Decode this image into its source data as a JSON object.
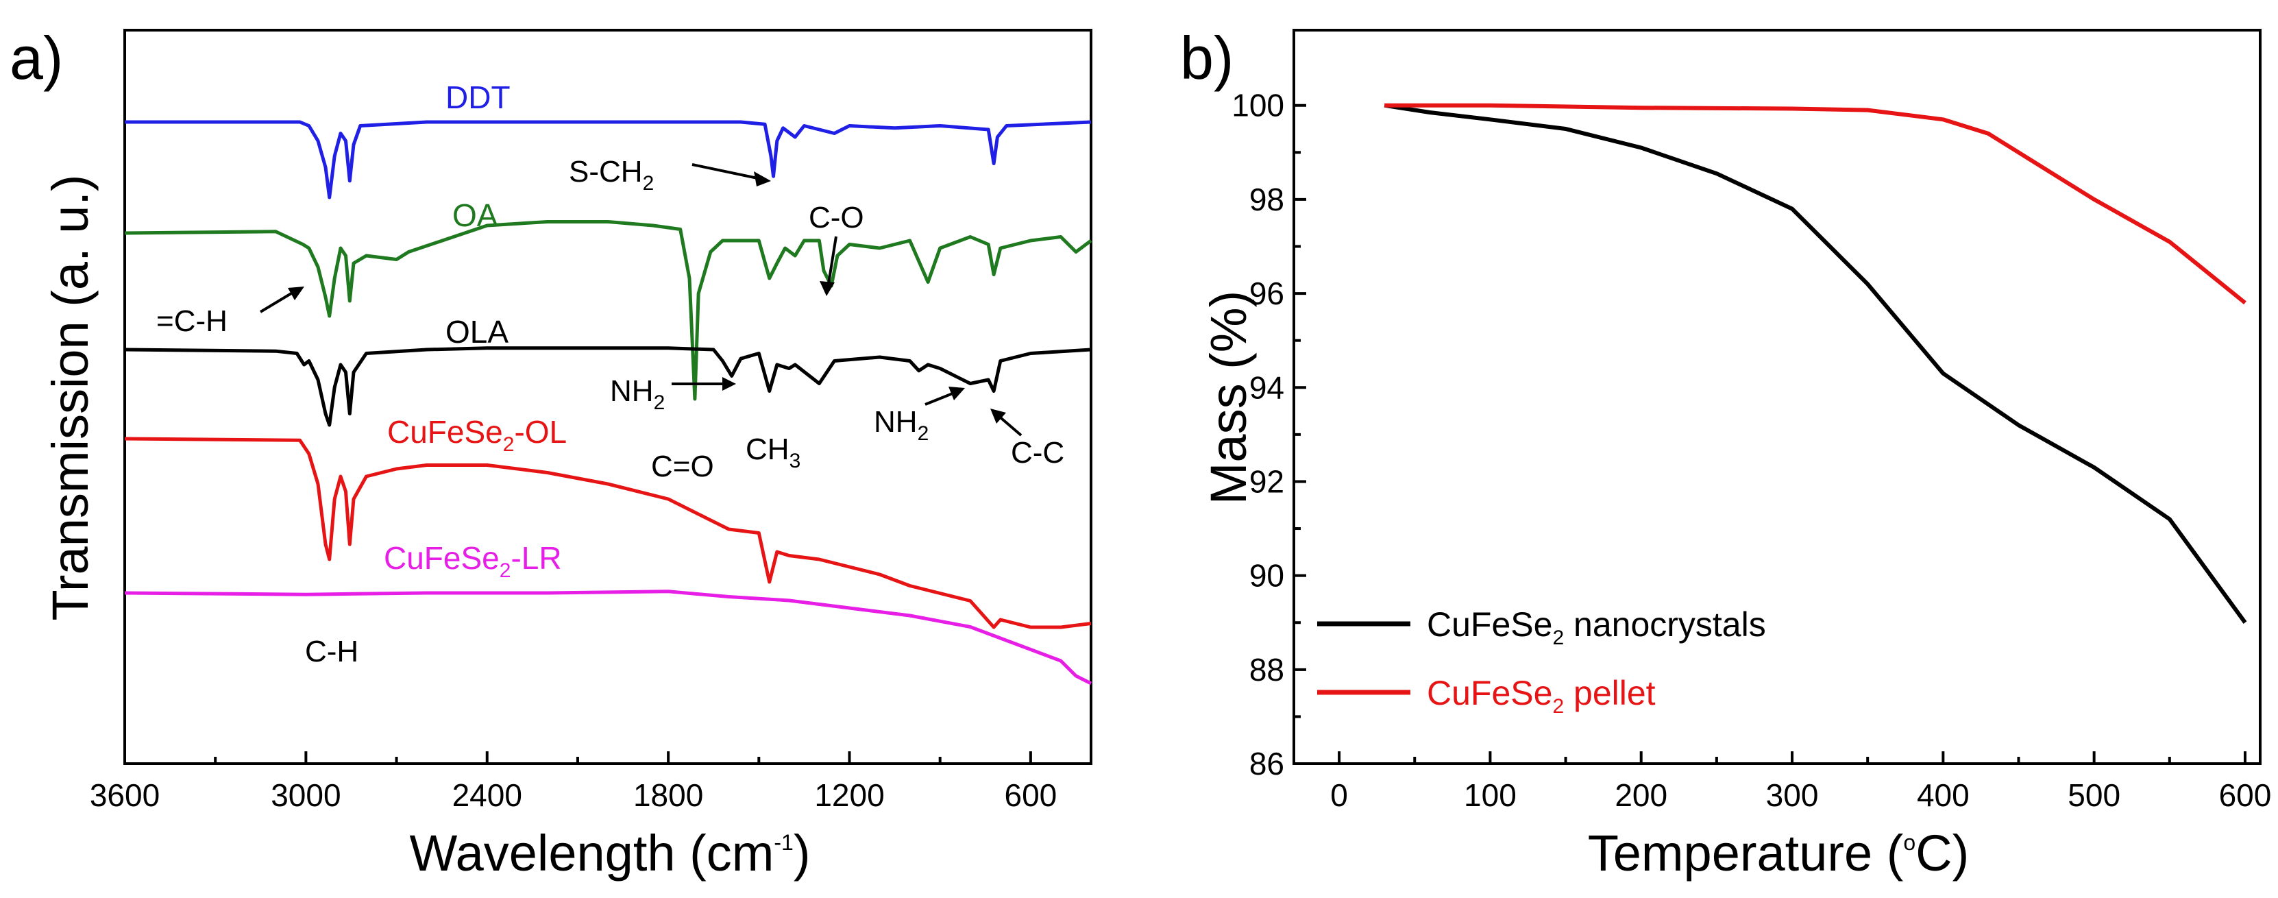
{
  "chart_data": [
    {
      "type": "line",
      "panel_label": "a)",
      "xlabel": "Wavelength (cm",
      "xlabel_sup": "-1",
      "xlabel_end": ")",
      "ylabel": "Transmission (a. u.)",
      "xlim": [
        3600,
        400
      ],
      "x_ticks": [
        3600,
        3000,
        2400,
        1800,
        1200,
        600
      ],
      "series": [
        {
          "name": "DDT",
          "color": "#1f1fe6",
          "offset": 0.0,
          "points": [
            [
              3600,
              0
            ],
            [
              3020,
              0
            ],
            [
              2990,
              -0.05
            ],
            [
              2960,
              -0.25
            ],
            [
              2935,
              -0.6
            ],
            [
              2922,
              -1.0
            ],
            [
              2905,
              -0.45
            ],
            [
              2885,
              -0.15
            ],
            [
              2868,
              -0.25
            ],
            [
              2855,
              -0.78
            ],
            [
              2842,
              -0.3
            ],
            [
              2820,
              -0.05
            ],
            [
              2600,
              0
            ],
            [
              1560,
              0
            ],
            [
              1480,
              -0.03
            ],
            [
              1460,
              -0.45
            ],
            [
              1452,
              -0.72
            ],
            [
              1440,
              -0.25
            ],
            [
              1420,
              -0.08
            ],
            [
              1380,
              -0.2
            ],
            [
              1350,
              -0.05
            ],
            [
              1300,
              -0.1
            ],
            [
              1250,
              -0.15
            ],
            [
              1200,
              -0.05
            ],
            [
              1050,
              -0.08
            ],
            [
              900,
              -0.05
            ],
            [
              740,
              -0.1
            ],
            [
              722,
              -0.55
            ],
            [
              710,
              -0.2
            ],
            [
              680,
              -0.05
            ],
            [
              400,
              0
            ]
          ]
        },
        {
          "name": "OA",
          "color": "#1f7a1f",
          "offset": 1.3,
          "points": [
            [
              3600,
              0
            ],
            [
              3100,
              0.02
            ],
            [
              3010,
              -0.15
            ],
            [
              2990,
              -0.2
            ],
            [
              2960,
              -0.45
            ],
            [
              2935,
              -0.85
            ],
            [
              2922,
              -1.1
            ],
            [
              2905,
              -0.6
            ],
            [
              2885,
              -0.2
            ],
            [
              2868,
              -0.3
            ],
            [
              2855,
              -0.9
            ],
            [
              2842,
              -0.4
            ],
            [
              2800,
              -0.3
            ],
            [
              2700,
              -0.35
            ],
            [
              2660,
              -0.25
            ],
            [
              2400,
              0.1
            ],
            [
              2200,
              0.15
            ],
            [
              2000,
              0.15
            ],
            [
              1850,
              0.1
            ],
            [
              1760,
              0.05
            ],
            [
              1730,
              -0.6
            ],
            [
              1712,
              -2.2
            ],
            [
              1700,
              -0.8
            ],
            [
              1660,
              -0.25
            ],
            [
              1620,
              -0.1
            ],
            [
              1500,
              -0.1
            ],
            [
              1465,
              -0.6
            ],
            [
              1440,
              -0.4
            ],
            [
              1413,
              -0.2
            ],
            [
              1380,
              -0.3
            ],
            [
              1350,
              -0.1
            ],
            [
              1300,
              -0.1
            ],
            [
              1285,
              -0.5
            ],
            [
              1260,
              -0.7
            ],
            [
              1240,
              -0.3
            ],
            [
              1200,
              -0.15
            ],
            [
              1100,
              -0.2
            ],
            [
              1000,
              -0.1
            ],
            [
              940,
              -0.65
            ],
            [
              900,
              -0.2
            ],
            [
              800,
              -0.05
            ],
            [
              740,
              -0.15
            ],
            [
              722,
              -0.55
            ],
            [
              700,
              -0.2
            ],
            [
              600,
              -0.1
            ],
            [
              500,
              -0.05
            ],
            [
              450,
              -0.25
            ],
            [
              400,
              -0.1
            ]
          ]
        },
        {
          "name": "OLA",
          "color": "#000000",
          "offset": 2.6,
          "points": [
            [
              3600,
              0
            ],
            [
              3100,
              -0.02
            ],
            [
              3030,
              -0.05
            ],
            [
              3006,
              -0.2
            ],
            [
              2990,
              -0.15
            ],
            [
              2960,
              -0.4
            ],
            [
              2935,
              -0.85
            ],
            [
              2922,
              -1.0
            ],
            [
              2905,
              -0.5
            ],
            [
              2885,
              -0.2
            ],
            [
              2868,
              -0.3
            ],
            [
              2855,
              -0.85
            ],
            [
              2842,
              -0.3
            ],
            [
              2800,
              -0.05
            ],
            [
              2600,
              0
            ],
            [
              2400,
              0.02
            ],
            [
              1800,
              0.02
            ],
            [
              1650,
              0
            ],
            [
              1620,
              -0.15
            ],
            [
              1590,
              -0.35
            ],
            [
              1560,
              -0.12
            ],
            [
              1500,
              -0.05
            ],
            [
              1465,
              -0.55
            ],
            [
              1440,
              -0.2
            ],
            [
              1400,
              -0.25
            ],
            [
              1380,
              -0.2
            ],
            [
              1300,
              -0.45
            ],
            [
              1250,
              -0.15
            ],
            [
              1100,
              -0.1
            ],
            [
              1000,
              -0.15
            ],
            [
              970,
              -0.28
            ],
            [
              940,
              -0.2
            ],
            [
              900,
              -0.25
            ],
            [
              800,
              -0.45
            ],
            [
              740,
              -0.4
            ],
            [
              722,
              -0.55
            ],
            [
              700,
              -0.15
            ],
            [
              600,
              -0.05
            ],
            [
              400,
              0
            ]
          ]
        },
        {
          "name": "CuFeSe2-OL",
          "color": "#e61414",
          "offset": 3.9,
          "points": [
            [
              3600,
              0
            ],
            [
              3020,
              -0.02
            ],
            [
              2990,
              -0.2
            ],
            [
              2960,
              -0.6
            ],
            [
              2935,
              -1.4
            ],
            [
              2922,
              -1.6
            ],
            [
              2905,
              -0.8
            ],
            [
              2885,
              -0.5
            ],
            [
              2868,
              -0.7
            ],
            [
              2855,
              -1.4
            ],
            [
              2842,
              -0.8
            ],
            [
              2800,
              -0.5
            ],
            [
              2700,
              -0.4
            ],
            [
              2600,
              -0.35
            ],
            [
              2400,
              -0.35
            ],
            [
              2200,
              -0.45
            ],
            [
              2000,
              -0.6
            ],
            [
              1800,
              -0.8
            ],
            [
              1600,
              -1.2
            ],
            [
              1500,
              -1.25
            ],
            [
              1465,
              -1.9
            ],
            [
              1440,
              -1.5
            ],
            [
              1400,
              -1.55
            ],
            [
              1300,
              -1.6
            ],
            [
              1200,
              -1.7
            ],
            [
              1100,
              -1.8
            ],
            [
              1000,
              -1.95
            ],
            [
              900,
              -2.05
            ],
            [
              800,
              -2.15
            ],
            [
              722,
              -2.5
            ],
            [
              700,
              -2.4
            ],
            [
              600,
              -2.5
            ],
            [
              500,
              -2.5
            ],
            [
              400,
              -2.45
            ]
          ]
        },
        {
          "name": "CuFeSe2-LR",
          "color": "#e61ee6",
          "offset": 5.2,
          "points": [
            [
              3600,
              0
            ],
            [
              3000,
              -0.02
            ],
            [
              2600,
              0
            ],
            [
              2200,
              0
            ],
            [
              1800,
              0.02
            ],
            [
              1600,
              -0.05
            ],
            [
              1400,
              -0.1
            ],
            [
              1200,
              -0.2
            ],
            [
              1000,
              -0.3
            ],
            [
              800,
              -0.45
            ],
            [
              700,
              -0.6
            ],
            [
              600,
              -0.75
            ],
            [
              500,
              -0.9
            ],
            [
              450,
              -1.1
            ],
            [
              400,
              -1.2
            ]
          ]
        }
      ],
      "annotations": [
        {
          "text": "S-CH",
          "sub": "2"
        },
        {
          "text": "=C-H"
        },
        {
          "text": "C-O"
        },
        {
          "text": "NH",
          "sub": "2"
        },
        {
          "text": "C=O"
        },
        {
          "text": "CH",
          "sub": "3"
        },
        {
          "text": "NH",
          "sub": "2"
        },
        {
          "text": "C-C"
        },
        {
          "text": "C-H"
        }
      ],
      "series_labels": [
        {
          "text": "DDT"
        },
        {
          "text": "OA"
        },
        {
          "text": "OLA"
        },
        {
          "text": "CuFeSe",
          "sub": "2",
          "tail": "-OL"
        },
        {
          "text": "CuFeSe",
          "sub": "2",
          "tail": "-LR"
        }
      ]
    },
    {
      "type": "line",
      "panel_label": "b)",
      "xlabel": "Temperature (",
      "xlabel_sup": "o",
      "xlabel_end": "C)",
      "ylabel": "Mass (%)",
      "xlim": [
        -30,
        610
      ],
      "ylim": [
        86,
        101.6
      ],
      "x_ticks": [
        0,
        100,
        200,
        300,
        400,
        500,
        600
      ],
      "y_ticks": [
        86,
        88,
        90,
        92,
        94,
        96,
        98,
        100
      ],
      "series": [
        {
          "name": "CuFeSe2 nanocrystals",
          "color": "#000000",
          "points": [
            [
              30,
              100
            ],
            [
              60,
              99.85
            ],
            [
              100,
              99.7
            ],
            [
              150,
              99.5
            ],
            [
              200,
              99.1
            ],
            [
              250,
              98.55
            ],
            [
              300,
              97.8
            ],
            [
              350,
              96.2
            ],
            [
              400,
              94.3
            ],
            [
              450,
              93.2
            ],
            [
              500,
              92.3
            ],
            [
              550,
              91.2
            ],
            [
              600,
              89
            ]
          ]
        },
        {
          "name": "CuFeSe2 pellet",
          "color": "#e61414",
          "points": [
            [
              30,
              100
            ],
            [
              100,
              100
            ],
            [
              200,
              99.95
            ],
            [
              300,
              99.93
            ],
            [
              350,
              99.9
            ],
            [
              400,
              99.7
            ],
            [
              430,
              99.4
            ],
            [
              460,
              98.8
            ],
            [
              500,
              98
            ],
            [
              550,
              97.1
            ],
            [
              600,
              95.8
            ]
          ]
        }
      ],
      "legend": [
        {
          "text": "CuFeSe",
          "sub": "2",
          "tail": " nanocrystals",
          "color": "#000000"
        },
        {
          "text": "CuFeSe",
          "sub": "2",
          "tail": " pellet",
          "color": "#e61414"
        }
      ]
    }
  ]
}
